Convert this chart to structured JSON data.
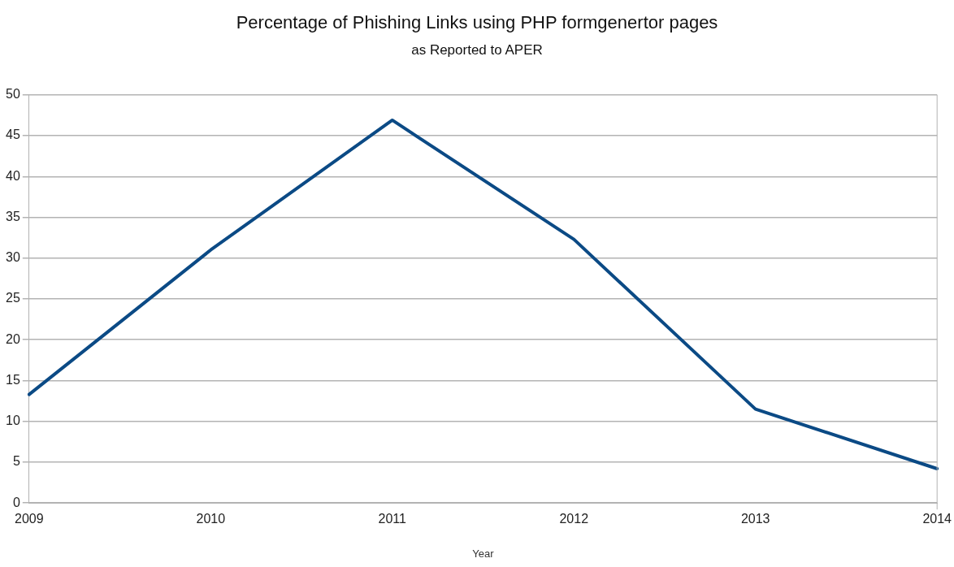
{
  "chart_data": {
    "type": "line",
    "title": "Percentage of Phishing Links using PHP formgenertor pages",
    "subtitle": "as Reported to APER",
    "xlabel": "Year",
    "categories": [
      "2009",
      "2010",
      "2011",
      "2012",
      "2013",
      "2014"
    ],
    "series": [
      {
        "color": "#0b4a85",
        "values": [
          13.3,
          31,
          46.9,
          32.3,
          11.5,
          4.2
        ]
      }
    ],
    "ylim": [
      0,
      50
    ],
    "yticks": [
      0,
      5,
      10,
      15,
      20,
      25,
      30,
      35,
      40,
      45,
      50
    ],
    "grid": "y",
    "legend": false,
    "marker": "none",
    "line_style": "solid"
  }
}
